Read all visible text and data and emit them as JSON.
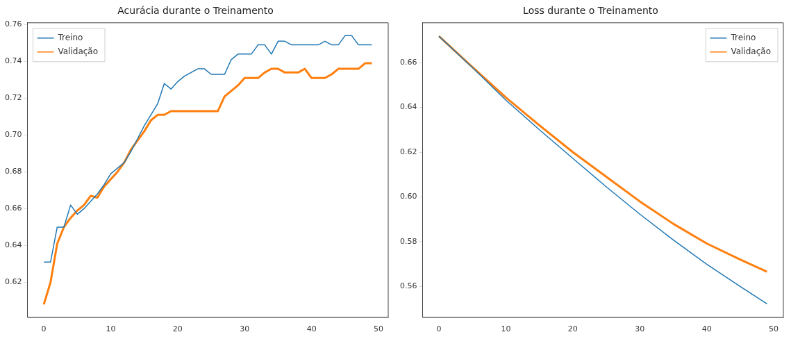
{
  "chart_data": [
    {
      "type": "line",
      "title": "Acurácia durante o Treinamento",
      "xlim": [
        -2.45,
        51.45
      ],
      "xticks": [
        0,
        10,
        20,
        30,
        40,
        50
      ],
      "ylim": [
        0.601,
        0.761
      ],
      "yticks": [
        0.62,
        0.64,
        0.66,
        0.68,
        {
          "value": 0.7,
          "label": "0.70"
        },
        0.72,
        0.74,
        0.76
      ],
      "legend": "top left",
      "grid": false,
      "x": [
        0,
        1,
        2,
        3,
        4,
        5,
        6,
        7,
        8,
        9,
        10,
        11,
        12,
        13,
        14,
        15,
        16,
        17,
        18,
        19,
        20,
        21,
        22,
        23,
        24,
        25,
        26,
        27,
        28,
        29,
        30,
        31,
        32,
        33,
        34,
        35,
        36,
        37,
        38,
        39,
        40,
        41,
        42,
        43,
        44,
        45,
        46,
        47,
        48,
        49
      ],
      "series": [
        {
          "name": "Treino",
          "color": "#1f77b4",
          "values": [
            0.631,
            0.631,
            0.65,
            0.65,
            0.662,
            0.657,
            0.66,
            0.664,
            0.668,
            0.673,
            0.679,
            0.682,
            0.685,
            0.691,
            0.698,
            0.705,
            0.711,
            0.717,
            0.728,
            0.725,
            0.729,
            0.732,
            0.734,
            0.736,
            0.736,
            0.733,
            0.733,
            0.733,
            0.741,
            0.744,
            0.744,
            0.744,
            0.749,
            0.749,
            0.744,
            0.751,
            0.751,
            0.749,
            0.749,
            0.749,
            0.749,
            0.749,
            0.751,
            0.749,
            0.749,
            0.754,
            0.754,
            0.749,
            0.749,
            0.749
          ]
        },
        {
          "name": "Validação",
          "color": "#ff7f0e",
          "values": [
            0.608,
            0.62,
            0.641,
            0.65,
            0.655,
            0.659,
            0.662,
            0.667,
            0.666,
            0.672,
            0.676,
            0.68,
            0.685,
            0.692,
            0.697,
            0.702,
            0.708,
            0.711,
            0.711,
            0.713,
            0.713,
            0.713,
            0.713,
            0.713,
            0.713,
            0.713,
            0.713,
            0.721,
            0.724,
            0.727,
            0.731,
            0.731,
            0.731,
            0.734,
            0.736,
            0.736,
            0.734,
            0.734,
            0.734,
            0.736,
            0.731,
            0.731,
            0.731,
            0.733,
            0.736,
            0.736,
            0.736,
            0.736,
            0.739,
            0.739
          ]
        }
      ]
    },
    {
      "type": "line",
      "title": "Loss durante o Treinamento",
      "xlim": [
        -2.45,
        51.45
      ],
      "xticks": [
        0,
        10,
        20,
        30,
        40,
        50
      ],
      "ylim": [
        0.5462,
        0.6778
      ],
      "yticks": [
        0.56,
        0.58,
        {
          "value": 0.6,
          "label": "0.60"
        },
        0.62,
        0.64,
        0.66
      ],
      "legend": "top right",
      "grid": false,
      "x": [
        0,
        5,
        10,
        15,
        20,
        25,
        30,
        35,
        40,
        45,
        49
      ],
      "series": [
        {
          "name": "Treino",
          "color": "#1f77b4",
          "values": [
            0.6718,
            0.6578,
            0.6432,
            0.63,
            0.6172,
            0.6045,
            0.5923,
            0.5808,
            0.5699,
            0.56,
            0.5522
          ]
        },
        {
          "name": "Validação",
          "color": "#ff7f0e",
          "values": [
            0.6718,
            0.658,
            0.6444,
            0.632,
            0.62,
            0.609,
            0.598,
            0.588,
            0.5792,
            0.572,
            0.5666
          ]
        }
      ]
    }
  ]
}
